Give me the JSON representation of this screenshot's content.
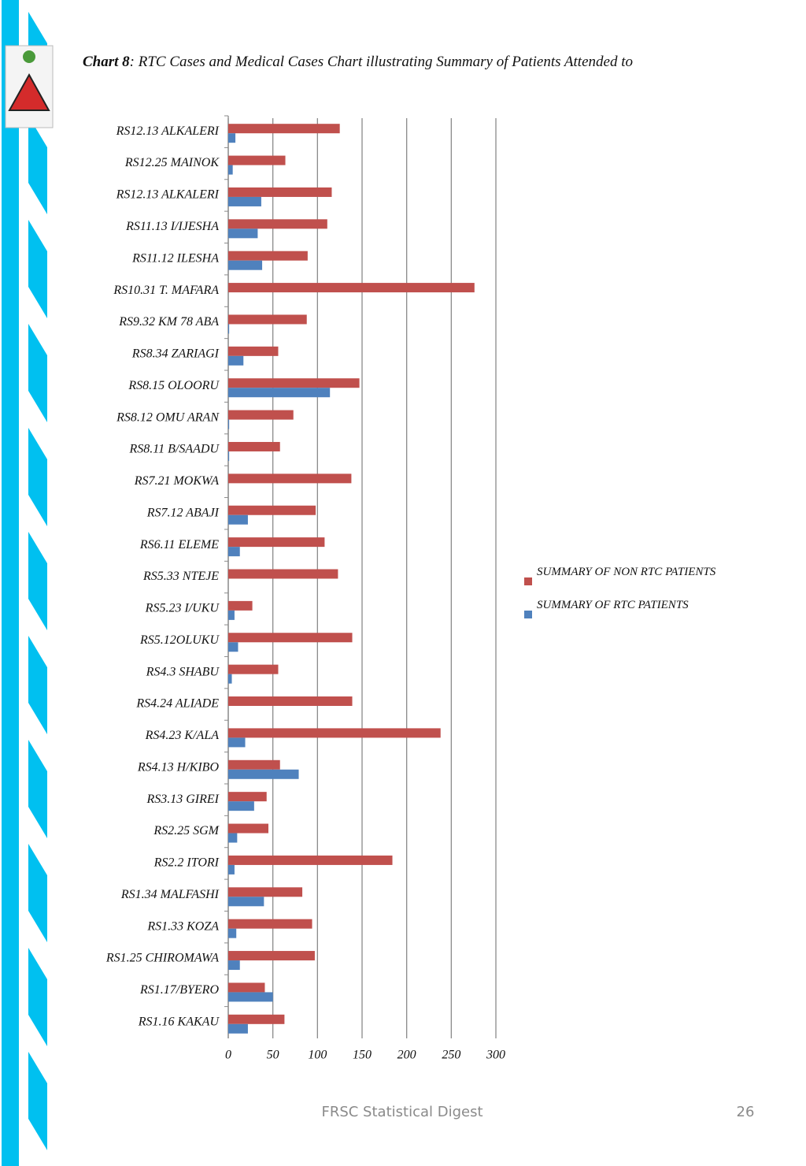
{
  "caption": {
    "label": "Chart 8",
    "text": ": RTC Cases and Medical Cases Chart illustrating Summary of Patients Attended to"
  },
  "chart_data": {
    "type": "hbar",
    "categories": [
      "RS12.13 ALKALERI",
      "RS12.25 MAINOK",
      "RS12.13 ALKALERI",
      "RS11.13 I/IJESHA",
      "RS11.12 ILESHA",
      "RS10.31 T. MAFARA",
      "RS9.32  KM 78 ABA",
      "RS8.34 ZARIAGI",
      "RS8.15 OLOORU",
      "RS8.12 OMU ARAN",
      "RS8.11 B/SAADU",
      "RS7.21 MOKWA",
      "RS7.12 ABAJI",
      "RS6.11 ELEME",
      "RS5.33 NTEJE",
      "RS5.23 I/UKU",
      "RS5.12OLUKU",
      "RS4.3 SHABU",
      "RS4.24 ALIADE",
      "RS4.23 K/ALA",
      "RS4.13 H/KIBO",
      "RS3.13 GIREI",
      "RS2.25 SGM",
      "RS2.2 ITORI",
      "RS1.34 MALFASHI",
      "RS1.33 KOZA",
      "RS1.25 CHIROMAWA",
      "RS1.17/BYERO",
      "RS1.16 KAKAU"
    ],
    "series": [
      {
        "name": "SUMMARY OF NON RTC PATIENTS",
        "color": "#c0504d",
        "values": [
          125,
          64,
          116,
          111,
          89,
          276,
          88,
          56,
          147,
          73,
          58,
          138,
          98,
          108,
          123,
          27,
          139,
          56,
          139,
          238,
          58,
          43,
          45,
          184,
          83,
          94,
          97,
          41,
          63
        ]
      },
      {
        "name": "SUMMARY OF RTC PATIENTS",
        "color": "#4f81bd",
        "values": [
          8,
          5,
          37,
          33,
          38,
          0,
          1,
          17,
          114,
          1,
          1,
          0,
          22,
          13,
          0,
          7,
          11,
          4,
          0,
          19,
          79,
          29,
          10,
          7,
          40,
          9,
          13,
          50,
          22
        ]
      }
    ],
    "xlim": [
      0,
      300
    ],
    "xticks": [
      0,
      50,
      100,
      150,
      200,
      250,
      300
    ],
    "grid": true,
    "legend": "right"
  },
  "footer": {
    "title": "FRSC Statistical Digest",
    "page": "26"
  }
}
